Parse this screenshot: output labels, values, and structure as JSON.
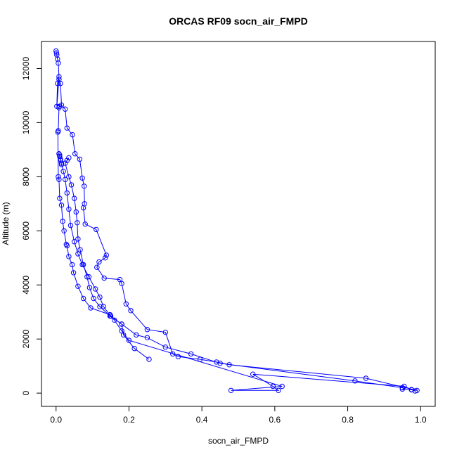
{
  "chart_data": {
    "type": "line",
    "title": "ORCAS RF09 socn_air_FMPD",
    "xlabel": "socn_air_FMPD",
    "ylabel": "Altitude (m)",
    "xlim": [
      -0.04,
      1.04
    ],
    "ylim": [
      -490,
      13000
    ],
    "x_ticks": [
      0,
      0.2,
      0.4,
      0.6,
      0.8,
      1.0
    ],
    "x_tick_labels": [
      "0.0",
      "0.2",
      "0.4",
      "0.6",
      "0.8",
      "1.0"
    ],
    "y_ticks": [
      0,
      2000,
      4000,
      6000,
      8000,
      10000,
      12000
    ],
    "y_tick_labels": [
      "0",
      "2000",
      "4000",
      "6000",
      "8000",
      "10000",
      "12000"
    ],
    "grid": false,
    "marker": "open-circle",
    "series_color": "#0000ff",
    "series": [
      {
        "x": [
          0.0,
          0.001,
          0.002,
          0.004,
          0.006,
          0.008,
          0.004,
          0.002,
          0.008,
          0.012,
          0.015,
          0.025,
          0.03,
          0.045,
          0.052,
          0.065,
          0.072,
          0.077,
          0.078,
          0.075,
          0.08,
          0.11,
          0.138,
          0.135,
          0.118,
          0.112,
          0.132,
          0.175,
          0.18,
          0.192,
          0.205,
          0.25,
          0.3,
          0.32,
          0.335,
          0.395,
          0.44,
          0.475,
          0.85,
          0.99,
          0.975,
          0.95
        ],
        "y": [
          12650,
          12580,
          12500,
          12350,
          12200,
          11700,
          11450,
          10600,
          11600,
          11450,
          10650,
          10500,
          9800,
          9550,
          8850,
          8650,
          7950,
          7650,
          7000,
          6850,
          6250,
          6050,
          5100,
          5000,
          4850,
          4650,
          4250,
          4200,
          4050,
          3300,
          3050,
          2350,
          2250,
          1450,
          1350,
          1250,
          1150,
          1050,
          550,
          100,
          120,
          150
        ]
      },
      {
        "x": [
          0.95,
          0.82,
          0.45,
          0.37,
          0.3,
          0.25,
          0.22,
          0.18,
          0.15,
          0.13,
          0.12,
          0.108,
          0.09,
          0.072,
          0.06,
          0.05,
          0.04,
          0.035,
          0.03,
          0.025,
          0.02,
          0.015,
          0.012,
          0.01,
          0.008,
          0.01,
          0.012,
          0.015
        ],
        "y": [
          200,
          450,
          1100,
          1450,
          1700,
          2050,
          2150,
          2550,
          2850,
          3200,
          3550,
          3850,
          4300,
          4750,
          5150,
          5600,
          6200,
          6800,
          7400,
          7900,
          8200,
          8450,
          8650,
          8800,
          8850,
          8750,
          8600,
          8500
        ]
      },
      {
        "x": [
          0.035,
          0.03,
          0.025,
          0.035,
          0.042,
          0.05,
          0.055,
          0.058,
          0.06,
          0.066,
          0.075,
          0.085,
          0.092,
          0.103,
          0.12,
          0.148,
          0.18,
          0.185,
          0.215,
          0.255
        ],
        "y": [
          8700,
          8600,
          8500,
          8000,
          7700,
          7200,
          6700,
          6300,
          5700,
          5300,
          4750,
          4300,
          3900,
          3500,
          3200,
          2850,
          2550,
          2150,
          1650,
          1250
        ]
      },
      {
        "x": [
          0.985,
          0.975,
          0.955,
          0.54,
          0.595,
          0.61,
          0.48,
          0.62,
          0.2,
          0.18,
          0.16,
          0.148,
          0.095,
          0.075,
          0.06,
          0.048,
          0.044,
          0.035,
          0.03,
          0.028,
          0.022,
          0.018,
          0.015,
          0.01,
          0.008,
          0.006,
          0.005,
          0.006,
          0.008,
          0.009
        ],
        "y": [
          80,
          130,
          250,
          700,
          250,
          100,
          100,
          250,
          1950,
          2300,
          2700,
          2900,
          3150,
          3500,
          3950,
          4450,
          4750,
          5050,
          5450,
          5500,
          6000,
          6350,
          6950,
          7200,
          7900,
          8000,
          9650,
          9700,
          10550,
          10600
        ]
      }
    ]
  }
}
